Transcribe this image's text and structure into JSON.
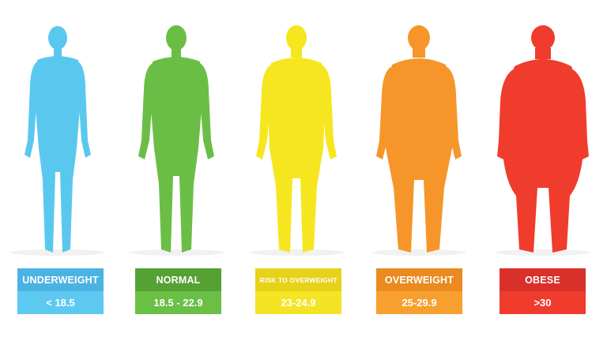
{
  "categories": [
    {
      "label": "UNDERWEIGHT",
      "range": "< 18.5",
      "body_color": "#5ac8ee",
      "title_color": "#4bb3e3",
      "value_color": "#5ec9f0"
    },
    {
      "label": "NORMAL",
      "range": "18.5 - 22.9",
      "body_color": "#6bbe45",
      "title_color": "#55a133",
      "value_color": "#6abf45"
    },
    {
      "label": "RISK TO OVERWEIGHT",
      "range": "23-24.9",
      "body_color": "#f6e61f",
      "title_color": "#e7d21a",
      "value_color": "#f4e424"
    },
    {
      "label": "OVERWEIGHT",
      "range": "25-29.9",
      "body_color": "#f6962a",
      "title_color": "#ea8a20",
      "value_color": "#f7a02f"
    },
    {
      "label": "OBESE",
      "range": ">30",
      "body_color": "#ef3c2d",
      "title_color": "#d9302a",
      "value_color": "#ef3c2d"
    }
  ]
}
